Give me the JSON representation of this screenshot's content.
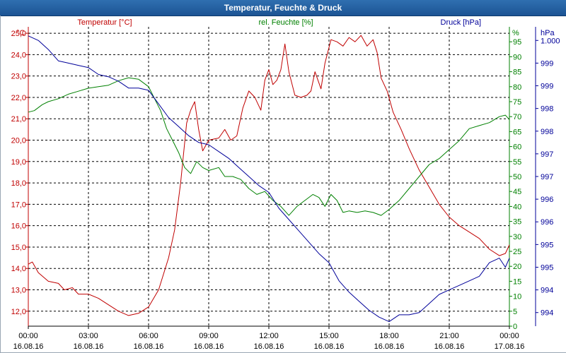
{
  "window": {
    "title": "Temperatur, Feuchte & Druck"
  },
  "colors": {
    "temp": "#c00000",
    "hum": "#008000",
    "press": "#000099",
    "grid": "#000000",
    "title_bg": "#1f5a9a"
  },
  "chart_data": {
    "type": "line",
    "title": "Temperatur, Feuchte & Druck",
    "x_labels": [
      {
        "time": "00:00",
        "date": "16.08.16"
      },
      {
        "time": "03:00",
        "date": "16.08.16"
      },
      {
        "time": "06:00",
        "date": "16.08.16"
      },
      {
        "time": "09:00",
        "date": "16.08.16"
      },
      {
        "time": "12:00",
        "date": "16.08.16"
      },
      {
        "time": "15:00",
        "date": "16.08.16"
      },
      {
        "time": "18:00",
        "date": "16.08.16"
      },
      {
        "time": "21:00",
        "date": "16.08.16"
      },
      {
        "time": "00:00",
        "date": "17.08.16"
      }
    ],
    "xlim_hours": [
      0,
      24
    ],
    "axes": {
      "temp": {
        "unit": "°C",
        "legend": "Temperatur [°C]",
        "min": 11.3,
        "max": 25.3,
        "ticks": [
          "12,0",
          "13,0",
          "14,0",
          "15,0",
          "16,0",
          "17,0",
          "18,0",
          "19,0",
          "20,0",
          "21,0",
          "22,0",
          "23,0",
          "24,0",
          "25,0"
        ],
        "tick_values": [
          12,
          13,
          14,
          15,
          16,
          17,
          18,
          19,
          20,
          21,
          22,
          23,
          24,
          25
        ]
      },
      "hum": {
        "unit": "%",
        "legend": "rel. Feuchte [%]",
        "min": 0,
        "max": 100,
        "ticks": [
          "0",
          "5",
          "10",
          "15",
          "20",
          "25",
          "30",
          "35",
          "40",
          "45",
          "50",
          "55",
          "60",
          "65",
          "70",
          "75",
          "80",
          "85",
          "90",
          "95"
        ],
        "tick_values": [
          0,
          5,
          10,
          15,
          20,
          25,
          30,
          35,
          40,
          45,
          50,
          55,
          60,
          65,
          70,
          75,
          80,
          85,
          90,
          95
        ]
      },
      "press": {
        "unit": "hPa",
        "legend": "Druck [hPa]",
        "min": 993.7,
        "max": 1000.3,
        "ticks": [
          "994",
          "994",
          "995",
          "995",
          "996",
          "996",
          "997",
          "997",
          "998",
          "998",
          "999",
          "999",
          "1.000"
        ],
        "tick_values": [
          994,
          994.5,
          995,
          995.5,
          996,
          996.5,
          997,
          997.5,
          998,
          998.5,
          999,
          999.5,
          1000
        ]
      }
    },
    "series": [
      {
        "name": "Temperatur [°C]",
        "axis": "temp",
        "color": "#c00000",
        "points": [
          [
            0,
            14.2
          ],
          [
            0.2,
            14.3
          ],
          [
            0.5,
            13.8
          ],
          [
            1,
            13.4
          ],
          [
            1.5,
            13.3
          ],
          [
            1.8,
            13.0
          ],
          [
            2.2,
            13.1
          ],
          [
            2.5,
            12.8
          ],
          [
            3,
            12.8
          ],
          [
            3.5,
            12.6
          ],
          [
            4,
            12.3
          ],
          [
            4.5,
            12.0
          ],
          [
            5,
            11.8
          ],
          [
            5.5,
            11.9
          ],
          [
            6,
            12.2
          ],
          [
            6.5,
            13.0
          ],
          [
            7,
            14.5
          ],
          [
            7.3,
            15.8
          ],
          [
            7.6,
            18.0
          ],
          [
            7.9,
            20.8
          ],
          [
            8.1,
            21.4
          ],
          [
            8.3,
            21.8
          ],
          [
            8.5,
            20.5
          ],
          [
            8.7,
            19.5
          ],
          [
            9,
            20.0
          ],
          [
            9.5,
            20.1
          ],
          [
            9.8,
            20.5
          ],
          [
            10.1,
            20.0
          ],
          [
            10.4,
            20.2
          ],
          [
            10.7,
            21.5
          ],
          [
            11,
            22.3
          ],
          [
            11.3,
            22.0
          ],
          [
            11.6,
            21.4
          ],
          [
            11.8,
            22.8
          ],
          [
            12,
            23.3
          ],
          [
            12.2,
            22.6
          ],
          [
            12.4,
            22.8
          ],
          [
            12.6,
            23.3
          ],
          [
            12.8,
            24.5
          ],
          [
            13,
            23.2
          ],
          [
            13.3,
            22.1
          ],
          [
            13.6,
            22.0
          ],
          [
            13.9,
            22.1
          ],
          [
            14.1,
            22.3
          ],
          [
            14.3,
            23.2
          ],
          [
            14.6,
            22.4
          ],
          [
            14.8,
            23.6
          ],
          [
            15.1,
            24.7
          ],
          [
            15.4,
            24.6
          ],
          [
            15.7,
            24.4
          ],
          [
            16,
            24.8
          ],
          [
            16.3,
            24.6
          ],
          [
            16.6,
            24.9
          ],
          [
            16.9,
            24.4
          ],
          [
            17.2,
            24.7
          ],
          [
            17.4,
            24.1
          ],
          [
            17.6,
            22.9
          ],
          [
            17.9,
            22.3
          ],
          [
            18.2,
            21.3
          ],
          [
            18.6,
            20.5
          ],
          [
            19,
            19.6
          ],
          [
            19.5,
            18.6
          ],
          [
            20,
            17.8
          ],
          [
            20.5,
            17.0
          ],
          [
            21,
            16.4
          ],
          [
            21.5,
            16.0
          ],
          [
            22,
            15.7
          ],
          [
            22.5,
            15.4
          ],
          [
            23,
            14.9
          ],
          [
            23.5,
            14.6
          ],
          [
            23.8,
            14.7
          ],
          [
            24,
            15.1
          ]
        ]
      },
      {
        "name": "rel. Feuchte [%]",
        "axis": "hum",
        "color": "#008000",
        "points": [
          [
            0,
            71.5
          ],
          [
            0.3,
            72
          ],
          [
            0.7,
            74
          ],
          [
            1,
            75
          ],
          [
            1.5,
            76
          ],
          [
            2,
            77.5
          ],
          [
            2.5,
            78.5
          ],
          [
            3,
            79.5
          ],
          [
            3.5,
            80
          ],
          [
            4,
            80.5
          ],
          [
            4.5,
            82
          ],
          [
            5,
            83
          ],
          [
            5.5,
            82.5
          ],
          [
            6,
            80
          ],
          [
            6.3,
            76
          ],
          [
            6.6,
            72
          ],
          [
            6.9,
            66
          ],
          [
            7.2,
            62
          ],
          [
            7.5,
            58
          ],
          [
            7.8,
            53
          ],
          [
            8.1,
            51
          ],
          [
            8.4,
            55
          ],
          [
            8.7,
            53
          ],
          [
            9,
            52
          ],
          [
            9.5,
            53
          ],
          [
            9.8,
            50
          ],
          [
            10.2,
            50
          ],
          [
            10.6,
            49
          ],
          [
            11,
            46
          ],
          [
            11.4,
            44
          ],
          [
            11.8,
            45
          ],
          [
            12.2,
            42
          ],
          [
            12.6,
            40
          ],
          [
            13,
            37
          ],
          [
            13.4,
            40
          ],
          [
            13.8,
            42
          ],
          [
            14.2,
            44
          ],
          [
            14.5,
            43
          ],
          [
            14.8,
            40
          ],
          [
            15.1,
            44
          ],
          [
            15.4,
            42
          ],
          [
            15.7,
            38
          ],
          [
            16,
            38.5
          ],
          [
            16.4,
            38
          ],
          [
            16.8,
            38.5
          ],
          [
            17.2,
            38
          ],
          [
            17.6,
            37
          ],
          [
            18,
            39
          ],
          [
            18.5,
            42
          ],
          [
            19,
            46
          ],
          [
            19.5,
            50
          ],
          [
            20,
            54
          ],
          [
            20.5,
            56
          ],
          [
            21,
            59
          ],
          [
            21.5,
            62
          ],
          [
            22,
            66
          ],
          [
            22.5,
            67
          ],
          [
            23,
            68
          ],
          [
            23.5,
            70
          ],
          [
            23.8,
            70.5
          ],
          [
            24,
            69
          ]
        ]
      },
      {
        "name": "Druck [hPa]",
        "axis": "press",
        "color": "#000099",
        "points": [
          [
            0,
            1000.1
          ],
          [
            0.5,
            1000.0
          ],
          [
            1,
            999.8
          ],
          [
            1.5,
            999.55
          ],
          [
            2,
            999.5
          ],
          [
            2.5,
            999.45
          ],
          [
            3,
            999.4
          ],
          [
            3.5,
            999.25
          ],
          [
            4,
            999.2
          ],
          [
            4.5,
            999.1
          ],
          [
            5,
            998.95
          ],
          [
            5.5,
            998.95
          ],
          [
            6,
            998.9
          ],
          [
            6.5,
            998.6
          ],
          [
            7,
            998.3
          ],
          [
            7.5,
            998.1
          ],
          [
            8,
            997.9
          ],
          [
            8.5,
            997.75
          ],
          [
            9,
            997.7
          ],
          [
            9.5,
            997.55
          ],
          [
            10,
            997.4
          ],
          [
            10.5,
            997.2
          ],
          [
            11,
            997.0
          ],
          [
            11.5,
            996.8
          ],
          [
            12,
            996.65
          ],
          [
            12.5,
            996.3
          ],
          [
            13,
            996.05
          ],
          [
            13.5,
            995.8
          ],
          [
            14,
            995.55
          ],
          [
            14.5,
            995.3
          ],
          [
            15,
            995.1
          ],
          [
            15.5,
            994.7
          ],
          [
            16,
            994.45
          ],
          [
            16.5,
            994.25
          ],
          [
            17,
            994.05
          ],
          [
            17.5,
            993.9
          ],
          [
            18,
            993.8
          ],
          [
            18.5,
            993.95
          ],
          [
            19,
            993.95
          ],
          [
            19.5,
            994.0
          ],
          [
            20,
            994.2
          ],
          [
            20.5,
            994.4
          ],
          [
            21,
            994.5
          ],
          [
            21.5,
            994.6
          ],
          [
            22,
            994.7
          ],
          [
            22.5,
            994.8
          ],
          [
            23,
            995.1
          ],
          [
            23.5,
            995.2
          ],
          [
            23.8,
            995.0
          ],
          [
            24,
            995.2
          ]
        ]
      }
    ]
  }
}
